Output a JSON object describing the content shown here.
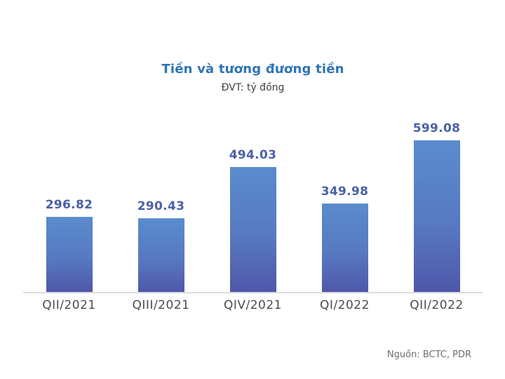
{
  "chart_data": {
    "type": "bar",
    "title": "Tiền và tương đương tiền",
    "subtitle": "ĐVT: tỷ đồng",
    "categories": [
      "QII/2021",
      "QIII/2021",
      "QIV/2021",
      "QI/2022",
      "QII/2022"
    ],
    "values": [
      296.82,
      290.43,
      494.03,
      349.98,
      599.08
    ],
    "value_labels": [
      "296.82",
      "290.43",
      "494.03",
      "349.98",
      "599.08"
    ],
    "source": "Nguồn: BCTC, PDR",
    "ylim": [
      0,
      600
    ],
    "grid": false,
    "legend_position": "none",
    "colors": {
      "title": "#2e74b5",
      "subtitle": "#3f3f3f",
      "value_label": "#4a60a8",
      "bar_gradient_top": "#5a8ccd",
      "bar_gradient_bottom": "#4f57aa",
      "axis_line": "#dcdcdc",
      "category_label": "#4b4b4b",
      "source": "#6e6e6e"
    }
  }
}
